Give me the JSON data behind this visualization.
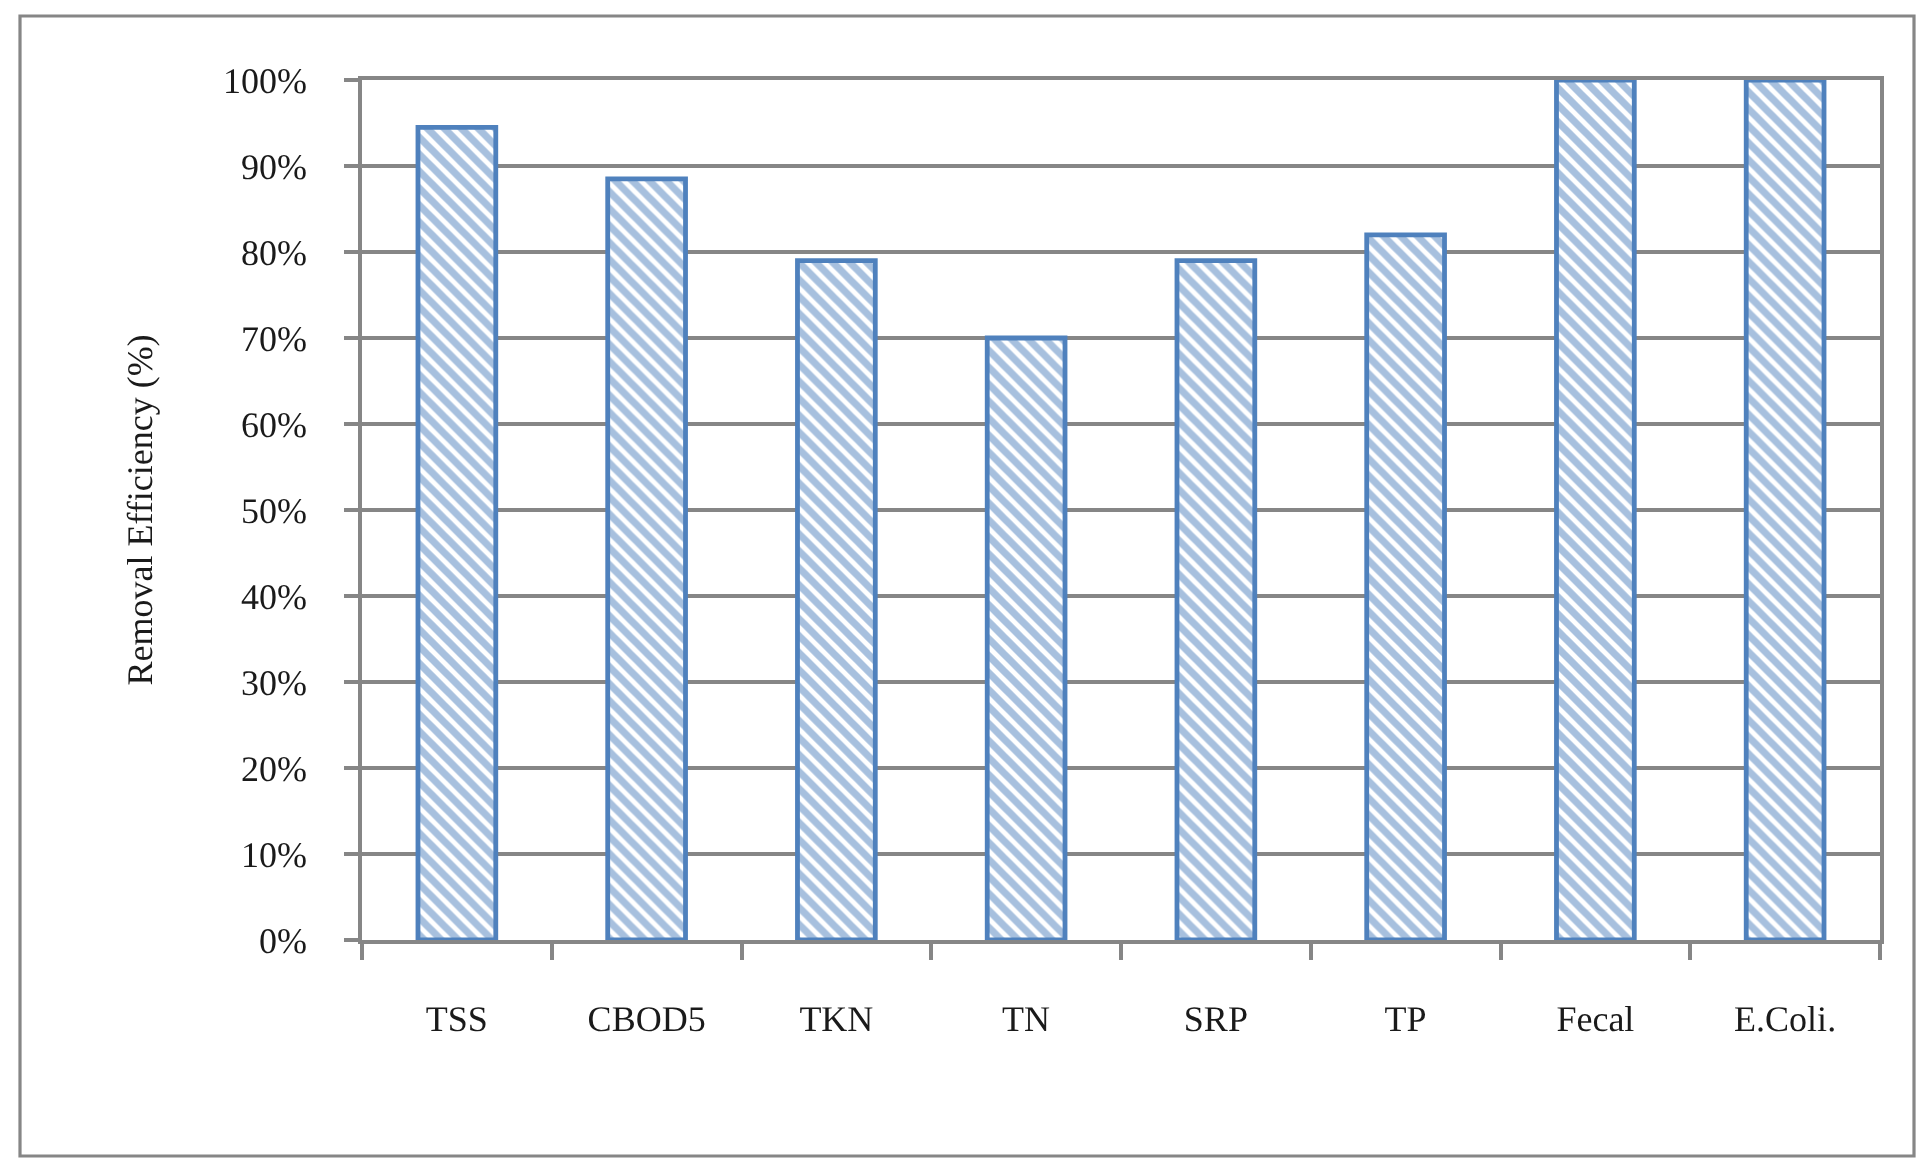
{
  "chart_data": {
    "type": "bar",
    "ylabel": "Removal Efficiency (%)",
    "categories": [
      "TSS",
      "CBOD5",
      "TKN",
      "TN",
      "SRP",
      "TP",
      "Fecal",
      "E.Coli."
    ],
    "values": [
      94.5,
      88.5,
      79,
      70,
      79,
      82,
      100,
      100
    ],
    "color": "#4f81bd",
    "ylim": [
      0,
      100
    ],
    "yticks": [
      {
        "value": 0,
        "label": "0%"
      },
      {
        "value": 10,
        "label": "10%"
      },
      {
        "value": 20,
        "label": "20%"
      },
      {
        "value": 30,
        "label": "30%"
      },
      {
        "value": 40,
        "label": "40%"
      },
      {
        "value": 50,
        "label": "50%"
      },
      {
        "value": 60,
        "label": "60%"
      },
      {
        "value": 70,
        "label": "70%"
      },
      {
        "value": 80,
        "label": "80%"
      },
      {
        "value": 90,
        "label": "90%"
      },
      {
        "value": 100,
        "label": "100%"
      }
    ],
    "grid": "y"
  }
}
